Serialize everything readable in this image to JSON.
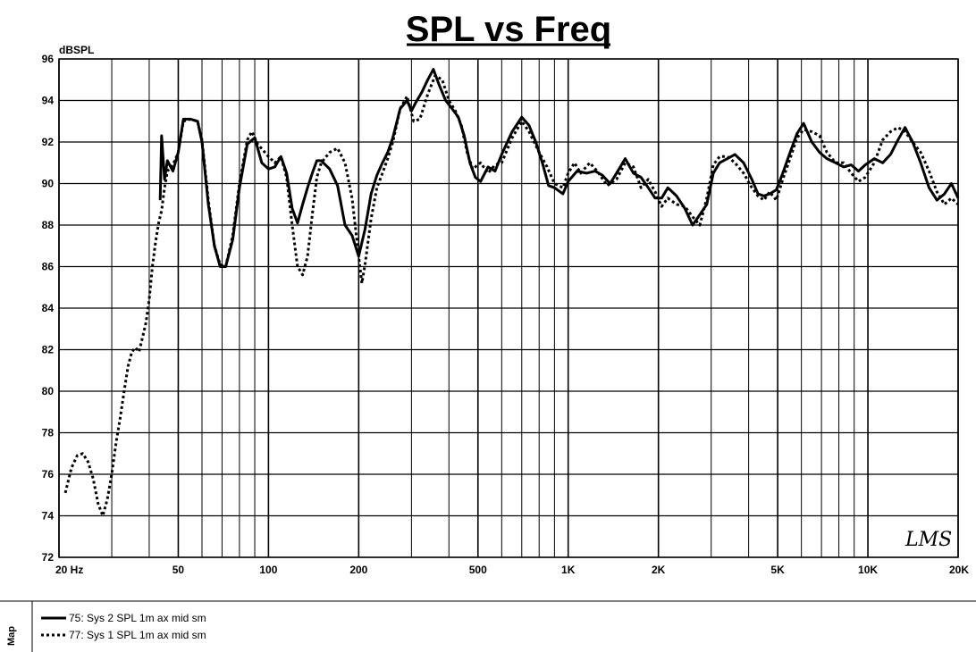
{
  "chart_data": {
    "type": "line",
    "title": "SPL vs Freq",
    "ylabel": "dBSPL",
    "xscale": "log",
    "xlim": [
      20,
      20000
    ],
    "ylim": [
      72,
      96
    ],
    "grid": true,
    "x_ticks": [
      {
        "value": 20,
        "label": "20  Hz"
      },
      {
        "value": 50,
        "label": "50"
      },
      {
        "value": 100,
        "label": "100"
      },
      {
        "value": 200,
        "label": "200"
      },
      {
        "value": 500,
        "label": "500"
      },
      {
        "value": 1000,
        "label": "1K"
      },
      {
        "value": 2000,
        "label": "2K"
      },
      {
        "value": 5000,
        "label": "5K"
      },
      {
        "value": 10000,
        "label": "10K"
      },
      {
        "value": 20000,
        "label": "20K"
      }
    ],
    "y_ticks": [
      72,
      74,
      76,
      78,
      80,
      82,
      84,
      86,
      88,
      90,
      92,
      94,
      96
    ],
    "legend_position": "bottom",
    "series": [
      {
        "name": "75: Sys 2 SPL 1m ax mid sm",
        "style": "solid",
        "color": "#000000",
        "points": [
          [
            43.5,
            89.2
          ],
          [
            44,
            92.3
          ],
          [
            45,
            90.2
          ],
          [
            46,
            91.1
          ],
          [
            48,
            90.6
          ],
          [
            50,
            91.5
          ],
          [
            52,
            93.1
          ],
          [
            55,
            93.1
          ],
          [
            58,
            93.0
          ],
          [
            60,
            92.0
          ],
          [
            63,
            89.0
          ],
          [
            66,
            87.0
          ],
          [
            69,
            86.0
          ],
          [
            72,
            86.0
          ],
          [
            76,
            87.3
          ],
          [
            80,
            89.8
          ],
          [
            85,
            91.9
          ],
          [
            90,
            92.2
          ],
          [
            95,
            91.0
          ],
          [
            100,
            90.7
          ],
          [
            105,
            90.8
          ],
          [
            110,
            91.3
          ],
          [
            115,
            90.5
          ],
          [
            120,
            88.8
          ],
          [
            125,
            88.1
          ],
          [
            130,
            89.0
          ],
          [
            135,
            89.8
          ],
          [
            140,
            90.5
          ],
          [
            145,
            91.1
          ],
          [
            150,
            91.1
          ],
          [
            160,
            90.7
          ],
          [
            170,
            89.9
          ],
          [
            180,
            88.0
          ],
          [
            190,
            87.5
          ],
          [
            200,
            86.5
          ],
          [
            210,
            87.8
          ],
          [
            220,
            89.5
          ],
          [
            230,
            90.4
          ],
          [
            240,
            91.0
          ],
          [
            250,
            91.5
          ],
          [
            260,
            92.2
          ],
          [
            275,
            93.6
          ],
          [
            290,
            94.0
          ],
          [
            300,
            93.5
          ],
          [
            310,
            93.9
          ],
          [
            325,
            94.4
          ],
          [
            340,
            95.0
          ],
          [
            355,
            95.5
          ],
          [
            370,
            94.8
          ],
          [
            390,
            94.0
          ],
          [
            410,
            93.6
          ],
          [
            430,
            93.2
          ],
          [
            450,
            92.3
          ],
          [
            470,
            91.0
          ],
          [
            490,
            90.3
          ],
          [
            510,
            90.1
          ],
          [
            540,
            90.8
          ],
          [
            570,
            90.6
          ],
          [
            600,
            91.4
          ],
          [
            650,
            92.5
          ],
          [
            700,
            93.2
          ],
          [
            740,
            92.8
          ],
          [
            780,
            92.0
          ],
          [
            820,
            91.0
          ],
          [
            860,
            89.9
          ],
          [
            900,
            89.8
          ],
          [
            960,
            89.5
          ],
          [
            1000,
            90.1
          ],
          [
            1070,
            90.6
          ],
          [
            1150,
            90.5
          ],
          [
            1230,
            90.6
          ],
          [
            1300,
            90.4
          ],
          [
            1380,
            90.0
          ],
          [
            1450,
            90.5
          ],
          [
            1550,
            91.2
          ],
          [
            1650,
            90.5
          ],
          [
            1750,
            90.3
          ],
          [
            1850,
            89.8
          ],
          [
            1950,
            89.3
          ],
          [
            2050,
            89.3
          ],
          [
            2150,
            89.8
          ],
          [
            2300,
            89.4
          ],
          [
            2450,
            88.8
          ],
          [
            2600,
            88.0
          ],
          [
            2750,
            88.5
          ],
          [
            2900,
            89.0
          ],
          [
            3050,
            90.5
          ],
          [
            3200,
            91.0
          ],
          [
            3400,
            91.2
          ],
          [
            3600,
            91.4
          ],
          [
            3850,
            91.0
          ],
          [
            4100,
            90.2
          ],
          [
            4300,
            89.5
          ],
          [
            4500,
            89.4
          ],
          [
            4700,
            89.5
          ],
          [
            4950,
            89.7
          ],
          [
            5200,
            90.5
          ],
          [
            5500,
            91.5
          ],
          [
            5800,
            92.4
          ],
          [
            6100,
            92.9
          ],
          [
            6500,
            92.0
          ],
          [
            6900,
            91.5
          ],
          [
            7300,
            91.2
          ],
          [
            7800,
            91.0
          ],
          [
            8300,
            90.8
          ],
          [
            8800,
            90.9
          ],
          [
            9300,
            90.6
          ],
          [
            9800,
            90.9
          ],
          [
            10500,
            91.2
          ],
          [
            11200,
            91.0
          ],
          [
            11900,
            91.4
          ],
          [
            12600,
            92.1
          ],
          [
            13300,
            92.7
          ],
          [
            14100,
            92.0
          ],
          [
            15000,
            91.0
          ],
          [
            16000,
            89.8
          ],
          [
            17000,
            89.2
          ],
          [
            18000,
            89.5
          ],
          [
            19000,
            90.0
          ],
          [
            20000,
            89.3
          ]
        ]
      },
      {
        "name": "77: Sys 1 SPL 1m ax mid sm",
        "style": "dotted",
        "color": "#000000",
        "points": [
          [
            21,
            75.1
          ],
          [
            22,
            76.3
          ],
          [
            23,
            76.9
          ],
          [
            24,
            77.0
          ],
          [
            25,
            76.6
          ],
          [
            26,
            75.8
          ],
          [
            27,
            74.6
          ],
          [
            28,
            74.0
          ],
          [
            29,
            74.8
          ],
          [
            30,
            76.0
          ],
          [
            31,
            77.5
          ],
          [
            32,
            78.7
          ],
          [
            33,
            80.0
          ],
          [
            34,
            81.2
          ],
          [
            35,
            81.9
          ],
          [
            36,
            82.1
          ],
          [
            37,
            81.9
          ],
          [
            38,
            82.6
          ],
          [
            39,
            83.3
          ],
          [
            40,
            84.4
          ],
          [
            41,
            86.0
          ],
          [
            42,
            87.2
          ],
          [
            43,
            88.1
          ],
          [
            44,
            88.7
          ],
          [
            45,
            89.8
          ],
          [
            46,
            90.6
          ],
          [
            48,
            90.9
          ],
          [
            50,
            91.5
          ],
          [
            52,
            93.0
          ],
          [
            55,
            93.1
          ],
          [
            58,
            93.0
          ],
          [
            60,
            92.1
          ],
          [
            63,
            89.2
          ],
          [
            66,
            87.0
          ],
          [
            69,
            86.1
          ],
          [
            72,
            86.0
          ],
          [
            76,
            87.5
          ],
          [
            80,
            90.0
          ],
          [
            85,
            92.1
          ],
          [
            88,
            92.5
          ],
          [
            92,
            91.9
          ],
          [
            96,
            91.6
          ],
          [
            100,
            91.3
          ],
          [
            105,
            91.0
          ],
          [
            110,
            91.3
          ],
          [
            115,
            90.3
          ],
          [
            120,
            88.0
          ],
          [
            125,
            86.0
          ],
          [
            130,
            85.6
          ],
          [
            135,
            86.5
          ],
          [
            140,
            88.5
          ],
          [
            145,
            90.3
          ],
          [
            150,
            91.0
          ],
          [
            160,
            91.5
          ],
          [
            170,
            91.7
          ],
          [
            180,
            91.0
          ],
          [
            190,
            89.3
          ],
          [
            200,
            86.5
          ],
          [
            205,
            85.2
          ],
          [
            210,
            86.1
          ],
          [
            220,
            88.3
          ],
          [
            230,
            89.8
          ],
          [
            240,
            90.5
          ],
          [
            250,
            91.2
          ],
          [
            260,
            92.0
          ],
          [
            275,
            93.6
          ],
          [
            290,
            94.2
          ],
          [
            305,
            93.0
          ],
          [
            320,
            93.1
          ],
          [
            340,
            94.3
          ],
          [
            360,
            95.2
          ],
          [
            380,
            95.0
          ],
          [
            400,
            94.0
          ],
          [
            420,
            93.5
          ],
          [
            440,
            92.8
          ],
          [
            460,
            91.5
          ],
          [
            480,
            90.7
          ],
          [
            510,
            91.0
          ],
          [
            540,
            90.5
          ],
          [
            570,
            90.9
          ],
          [
            600,
            91.0
          ],
          [
            650,
            92.2
          ],
          [
            700,
            93.0
          ],
          [
            740,
            92.5
          ],
          [
            800,
            91.5
          ],
          [
            850,
            90.8
          ],
          [
            900,
            90.0
          ],
          [
            960,
            89.8
          ],
          [
            1000,
            90.5
          ],
          [
            1050,
            91.0
          ],
          [
            1100,
            90.5
          ],
          [
            1180,
            91.0
          ],
          [
            1250,
            90.6
          ],
          [
            1350,
            89.9
          ],
          [
            1450,
            90.2
          ],
          [
            1550,
            91.0
          ],
          [
            1650,
            90.8
          ],
          [
            1750,
            89.8
          ],
          [
            1850,
            90.2
          ],
          [
            1950,
            89.6
          ],
          [
            2050,
            88.9
          ],
          [
            2150,
            89.3
          ],
          [
            2300,
            89.0
          ],
          [
            2450,
            88.9
          ],
          [
            2600,
            88.4
          ],
          [
            2750,
            88.0
          ],
          [
            2900,
            89.3
          ],
          [
            3050,
            90.9
          ],
          [
            3200,
            91.3
          ],
          [
            3400,
            91.3
          ],
          [
            3600,
            91.0
          ],
          [
            3850,
            90.5
          ],
          [
            4100,
            89.8
          ],
          [
            4300,
            89.4
          ],
          [
            4500,
            89.2
          ],
          [
            4700,
            89.6
          ],
          [
            4950,
            89.2
          ],
          [
            5200,
            90.2
          ],
          [
            5500,
            91.2
          ],
          [
            5800,
            92.2
          ],
          [
            6100,
            92.6
          ],
          [
            6500,
            92.5
          ],
          [
            6900,
            92.3
          ],
          [
            7300,
            91.5
          ],
          [
            7800,
            91.0
          ],
          [
            8300,
            91.0
          ],
          [
            8800,
            90.5
          ],
          [
            9300,
            90.1
          ],
          [
            9800,
            90.3
          ],
          [
            10500,
            91.0
          ],
          [
            11200,
            92.1
          ],
          [
            11900,
            92.5
          ],
          [
            12600,
            92.7
          ],
          [
            13300,
            92.5
          ],
          [
            14100,
            92.0
          ],
          [
            15000,
            91.5
          ],
          [
            16000,
            90.6
          ],
          [
            17000,
            89.6
          ],
          [
            18000,
            89.0
          ],
          [
            19000,
            89.3
          ],
          [
            20000,
            89.0
          ]
        ]
      }
    ]
  },
  "logo_text": "LMS",
  "panel": {
    "map_label": "Map"
  },
  "legend": [
    {
      "label": "75: Sys 2 SPL 1m ax mid sm",
      "style": "solid"
    },
    {
      "label": "77: Sys 1 SPL 1m ax mid sm",
      "style": "dotted"
    }
  ]
}
